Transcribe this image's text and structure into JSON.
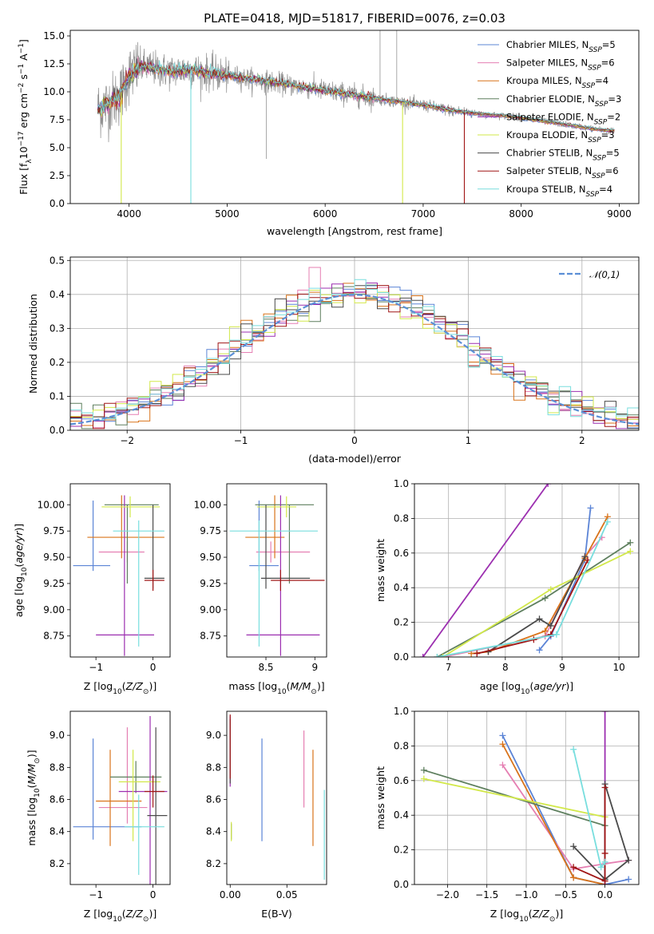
{
  "figure_title": "PLATE=0418, MJD=51817, FIBERID=0076, z=0.03",
  "colors": {
    "Chabrier MILES": "#5b84d6",
    "Salpeter MILES": "#e57fb2",
    "Kroupa MILES": "#d9731a",
    "Chabrier ELODIE": "#5e7f5e",
    "Salpeter ELODIE": "#9c2fb0",
    "Kroupa ELODIE": "#d2e84a",
    "Chabrier STELIB": "#4a4a4a",
    "Salpeter STELIB": "#a01515",
    "Kroupa STELIB": "#78dede",
    "data": "#8c8c8c",
    "normal": "#5b8fd6"
  },
  "chart_data": [
    {
      "id": "spectrum",
      "type": "line",
      "xlabel": "wavelength [Angstrom, rest frame]",
      "ylabel": "Flux [f_λ 10^-17 erg cm^-2 s^-1 A^-1]",
      "xlim": [
        3400,
        9200
      ],
      "ylim": [
        0,
        15.5
      ],
      "xticks": [
        4000,
        5000,
        6000,
        7000,
        8000,
        9000
      ],
      "yticks": [
        0.0,
        2.5,
        5.0,
        7.5,
        10.0,
        12.5,
        15.0
      ],
      "legend_position": "top-right",
      "legend": [
        {
          "label": "Chabrier MILES",
          "nssp": "5"
        },
        {
          "label": "Salpeter MILES",
          "nssp": "6"
        },
        {
          "label": "Kroupa MILES",
          "nssp": "4"
        },
        {
          "label": "Chabrier ELODIE",
          "nssp": "3"
        },
        {
          "label": "Salpeter ELODIE",
          "nssp": "2"
        },
        {
          "label": "Kroupa ELODIE",
          "nssp": "3"
        },
        {
          "label": "Chabrier STELIB",
          "nssp": "5"
        },
        {
          "label": "Salpeter STELIB",
          "nssp": "6"
        },
        {
          "label": "Kroupa STELIB",
          "nssp": "4"
        }
      ],
      "continuum": {
        "wavelength": [
          3680,
          3720,
          3800,
          3900,
          3950,
          4000,
          4100,
          4200,
          4400,
          4600,
          4800,
          5000,
          5200,
          5500,
          5800,
          6000,
          6300,
          6600,
          7000,
          7300,
          7600,
          7900,
          8200,
          8500,
          8800,
          8950
        ],
        "flux": [
          8.5,
          8.6,
          9.0,
          9.6,
          10.5,
          11.5,
          12.2,
          12.2,
          11.8,
          12.0,
          11.7,
          11.5,
          11.2,
          10.8,
          10.4,
          10.1,
          9.7,
          9.3,
          8.8,
          8.3,
          8.0,
          7.8,
          7.4,
          7.0,
          6.6,
          6.5
        ]
      },
      "dips": [
        {
          "wavelength": 3920,
          "flux": 0.0,
          "series": "Kroupa ELODIE"
        },
        {
          "wavelength": 4630,
          "flux": 0.0,
          "series": "Kroupa STELIB"
        },
        {
          "wavelength": 6790,
          "flux": 0.0,
          "series": "Kroupa ELODIE"
        },
        {
          "wavelength": 7420,
          "flux": 0.0,
          "series": "Salpeter STELIB"
        }
      ],
      "data_spikes": [
        {
          "wavelength": 5400,
          "flux": 4.0
        },
        {
          "wavelength": 6560,
          "flux": 15.5
        },
        {
          "wavelength": 6730,
          "flux": 15.5
        }
      ]
    },
    {
      "id": "residuals",
      "type": "histogram",
      "xlabel": "(data-model)/error",
      "ylabel": "Normed distribution",
      "xlim": [
        -2.5,
        2.5
      ],
      "ylim": [
        0,
        0.51
      ],
      "xticks": [
        -2,
        -1,
        0,
        1,
        2
      ],
      "yticks": [
        0.0,
        0.1,
        0.2,
        0.3,
        0.4,
        0.5
      ],
      "grid": true,
      "bin_width": 0.1,
      "reference": {
        "label": "𝒩(0,1)",
        "mean": 0,
        "sigma": 1
      },
      "legend_position": "top-right"
    },
    {
      "id": "age-vs-Z",
      "type": "errorbar",
      "xlabel": "Z [log10(Z/Z⊙)]",
      "ylabel": "age [log10(age/yr)]",
      "xlim": [
        -1.45,
        0.3
      ],
      "ylim": [
        8.55,
        10.2
      ],
      "xticks": [
        -1,
        0
      ],
      "yticks": [
        8.75,
        9.0,
        9.25,
        9.5,
        9.75,
        10.0
      ],
      "points": [
        {
          "series": "Chabrier MILES",
          "x": -1.05,
          "y": 9.42,
          "xerr": [
            0.35,
            0.3
          ],
          "yerr": [
            0.05,
            0.62
          ]
        },
        {
          "series": "Salpeter MILES",
          "x": -0.45,
          "y": 9.55,
          "xerr": [
            0.5,
            0.3
          ],
          "yerr": [
            0.1,
            0.1
          ]
        },
        {
          "series": "Kroupa MILES",
          "x": -0.55,
          "y": 9.69,
          "xerr": [
            0.6,
            0.75
          ],
          "yerr": [
            0.2,
            0.4
          ]
        },
        {
          "series": "Chabrier ELODIE",
          "x": -0.45,
          "y": 10.0,
          "xerr": [
            0.4,
            0.55
          ],
          "yerr": [
            0.75,
            0.0
          ]
        },
        {
          "series": "Salpeter ELODIE",
          "x": -0.5,
          "y": 8.76,
          "xerr": [
            0.5,
            0.52
          ],
          "yerr": [
            0.2,
            1.33
          ]
        },
        {
          "series": "Kroupa ELODIE",
          "x": -0.4,
          "y": 9.98,
          "xerr": [
            0.5,
            0.52
          ],
          "yerr": [
            0.1,
            0.1
          ]
        },
        {
          "series": "Chabrier STELIB",
          "x": 0.0,
          "y": 9.3,
          "xerr": [
            0.15,
            0.2
          ],
          "yerr": [
            0.1,
            0.7
          ]
        },
        {
          "series": "Salpeter STELIB",
          "x": 0.0,
          "y": 9.28,
          "xerr": [
            0.15,
            0.2
          ],
          "yerr": [
            0.1,
            0.1
          ]
        },
        {
          "series": "Kroupa STELIB",
          "x": -0.25,
          "y": 9.75,
          "xerr": [
            0.45,
            0.45
          ],
          "yerr": [
            1.1,
            0.1
          ]
        }
      ]
    },
    {
      "id": "age-vs-mass",
      "type": "errorbar",
      "xlabel": "mass [log10(M/M⊙)]",
      "xlim": [
        8.1,
        9.12
      ],
      "ylim": [
        8.55,
        10.2
      ],
      "xticks": [
        8.5,
        9.0
      ],
      "yticks": [
        8.75,
        9.0,
        9.25,
        9.5,
        9.75,
        10.0
      ],
      "points": [
        {
          "series": "Chabrier MILES",
          "x": 8.43,
          "y": 9.42,
          "xerr": [
            0.1,
            0.2
          ],
          "yerr": [
            0.05,
            0.62
          ]
        },
        {
          "series": "Salpeter MILES",
          "x": 8.55,
          "y": 9.55,
          "xerr": [
            0.15,
            0.4
          ],
          "yerr": [
            0.1,
            0.1
          ]
        },
        {
          "series": "Kroupa MILES",
          "x": 8.59,
          "y": 9.69,
          "xerr": [
            0.3,
            0.1
          ],
          "yerr": [
            0.2,
            0.4
          ]
        },
        {
          "series": "Chabrier ELODIE",
          "x": 8.74,
          "y": 10.0,
          "xerr": [
            0.35,
            0.25
          ],
          "yerr": [
            0.75,
            0.0
          ]
        },
        {
          "series": "Salpeter ELODIE",
          "x": 8.65,
          "y": 8.76,
          "xerr": [
            0.35,
            0.4
          ],
          "yerr": [
            0.2,
            1.33
          ]
        },
        {
          "series": "Kroupa ELODIE",
          "x": 8.71,
          "y": 9.98,
          "xerr": [
            0.3,
            0.1
          ],
          "yerr": [
            0.1,
            0.1
          ]
        },
        {
          "series": "Chabrier STELIB",
          "x": 8.5,
          "y": 9.3,
          "xerr": [
            0.05,
            0.45
          ],
          "yerr": [
            0.1,
            0.7
          ]
        },
        {
          "series": "Salpeter STELIB",
          "x": 8.65,
          "y": 9.28,
          "xerr": [
            0.1,
            0.45
          ],
          "yerr": [
            0.1,
            0.1
          ]
        },
        {
          "series": "Kroupa STELIB",
          "x": 8.43,
          "y": 9.75,
          "xerr": [
            0.3,
            0.6
          ],
          "yerr": [
            1.1,
            0.1
          ]
        }
      ]
    },
    {
      "id": "weight-vs-age",
      "type": "line",
      "xlabel": "age [log10(age/yr)]",
      "ylabel": "mass weight",
      "xlim": [
        6.4,
        10.35
      ],
      "ylim": [
        0,
        1.0
      ],
      "xticks": [
        7,
        8,
        9,
        10
      ],
      "yticks": [
        0.0,
        0.2,
        0.4,
        0.6,
        0.8,
        1.0
      ],
      "grid": true,
      "series": [
        {
          "name": "Chabrier MILES",
          "x": [
            8.6,
            8.8,
            9.4,
            9.5
          ],
          "y": [
            0.04,
            0.12,
            0.56,
            0.86
          ]
        },
        {
          "name": "Salpeter MILES",
          "x": [
            6.9,
            8.7,
            9.4,
            9.7
          ],
          "y": [
            0.0,
            0.12,
            0.58,
            0.69
          ]
        },
        {
          "name": "Kroupa MILES",
          "x": [
            7.4,
            7.7,
            8.7,
            9.4,
            9.8
          ],
          "y": [
            0.02,
            0.03,
            0.15,
            0.57,
            0.81
          ]
        },
        {
          "name": "Chabrier ELODIE",
          "x": [
            6.8,
            8.7,
            10.2
          ],
          "y": [
            0.0,
            0.34,
            0.66
          ]
        },
        {
          "name": "Salpeter ELODIE",
          "x": [
            6.55,
            8.75
          ],
          "y": [
            0.0,
            1.0
          ]
        },
        {
          "name": "Kroupa ELODIE",
          "x": [
            6.9,
            8.8,
            10.2
          ],
          "y": [
            0.0,
            0.39,
            0.61
          ]
        },
        {
          "name": "Chabrier STELIB",
          "x": [
            7.7,
            8.6,
            8.8,
            9.4
          ],
          "y": [
            0.03,
            0.22,
            0.18,
            0.58
          ]
        },
        {
          "name": "Salpeter STELIB",
          "x": [
            7.5,
            8.5,
            8.8,
            9.45
          ],
          "y": [
            0.02,
            0.1,
            0.13,
            0.56
          ]
        },
        {
          "name": "Kroupa STELIB",
          "x": [
            6.8,
            8.9,
            9.8
          ],
          "y": [
            0.0,
            0.13,
            0.78
          ]
        }
      ]
    },
    {
      "id": "mass-vs-Z",
      "type": "errorbar",
      "xlabel": "Z [log10(Z/Z⊙)]",
      "ylabel": "mass [log10(M/M⊙)]",
      "xlim": [
        -1.45,
        0.3
      ],
      "ylim": [
        8.07,
        9.15
      ],
      "xticks": [
        -1,
        0
      ],
      "yticks": [
        8.2,
        8.4,
        8.6,
        8.8,
        9.0
      ],
      "points": [
        {
          "series": "Chabrier MILES",
          "x": -1.05,
          "y": 8.43,
          "xerr": [
            0.35,
            0.85
          ],
          "yerr": [
            0.08,
            0.55
          ]
        },
        {
          "series": "Salpeter MILES",
          "x": -0.45,
          "y": 8.55,
          "xerr": [
            0.5,
            0.35
          ],
          "yerr": [
            0.1,
            0.5
          ]
        },
        {
          "series": "Kroupa MILES",
          "x": -0.75,
          "y": 8.59,
          "xerr": [
            0.25,
            0.55
          ],
          "yerr": [
            0.28,
            0.32
          ]
        },
        {
          "series": "Chabrier ELODIE",
          "x": -0.3,
          "y": 8.74,
          "xerr": [
            0.45,
            0.45
          ],
          "yerr": [
            0.1,
            0.1
          ]
        },
        {
          "series": "Salpeter ELODIE",
          "x": -0.05,
          "y": 8.65,
          "xerr": [
            0.55,
            0.3
          ],
          "yerr": [
            0.58,
            0.47
          ]
        },
        {
          "series": "Kroupa ELODIE",
          "x": -0.35,
          "y": 8.71,
          "xerr": [
            0.25,
            0.48
          ],
          "yerr": [
            0.37,
            0.2
          ]
        },
        {
          "series": "Chabrier STELIB",
          "x": 0.05,
          "y": 8.5,
          "xerr": [
            0.15,
            0.2
          ],
          "yerr": [
            0.5,
            0.55
          ]
        },
        {
          "series": "Salpeter STELIB",
          "x": 0.0,
          "y": 8.65,
          "xerr": [
            0.15,
            0.2
          ],
          "yerr": [
            0.1,
            0.1
          ]
        },
        {
          "series": "Kroupa STELIB",
          "x": -0.25,
          "y": 8.43,
          "xerr": [
            0.25,
            0.45
          ],
          "yerr": [
            0.3,
            0.2
          ]
        }
      ]
    },
    {
      "id": "mass-vs-ebv",
      "type": "errorbar",
      "xlabel": "E(B-V)",
      "xlim": [
        -0.003,
        0.085
      ],
      "ylim": [
        8.07,
        9.15
      ],
      "xticks": [
        0.0,
        0.05
      ],
      "yticks": [
        8.2,
        8.4,
        8.6,
        8.8,
        9.0
      ],
      "points": [
        {
          "series": "Chabrier MILES",
          "x": 0.028,
          "y": 8.66,
          "yerr": [
            0.32,
            0.32
          ]
        },
        {
          "series": "Salpeter MILES",
          "x": 0.065,
          "y": 8.79,
          "yerr": [
            0.24,
            0.24
          ]
        },
        {
          "series": "Kroupa MILES",
          "x": 0.073,
          "y": 8.61,
          "yerr": [
            0.3,
            0.3
          ]
        },
        {
          "series": "Chabrier ELODIE",
          "x": 0.001,
          "y": 8.4,
          "yerr": [
            0.05,
            0.05
          ]
        },
        {
          "series": "Salpeter ELODIE",
          "x": 0.0,
          "y": 8.9,
          "yerr": [
            0.22,
            0.22
          ]
        },
        {
          "series": "Kroupa ELODIE",
          "x": 0.001,
          "y": 8.4,
          "yerr": [
            0.06,
            0.06
          ]
        },
        {
          "series": "Chabrier STELIB",
          "x": 0.0,
          "y": 8.9,
          "yerr": [
            0.2,
            0.2
          ]
        },
        {
          "series": "Salpeter STELIB",
          "x": 0.0,
          "y": 8.93,
          "yerr": [
            0.2,
            0.2
          ]
        },
        {
          "series": "Kroupa STELIB",
          "x": 0.083,
          "y": 8.38,
          "yerr": [
            0.28,
            0.28
          ]
        }
      ]
    },
    {
      "id": "weight-vs-Z",
      "type": "line",
      "xlabel": "Z [log10(Z/Z⊙)]",
      "ylabel": "mass weight",
      "xlim": [
        -2.42,
        0.43
      ],
      "ylim": [
        0,
        1.0
      ],
      "xticks": [
        -2.0,
        -1.5,
        -1.0,
        -0.5,
        0.0
      ],
      "yticks": [
        0.0,
        0.2,
        0.4,
        0.6,
        0.8,
        1.0
      ],
      "grid": true,
      "series": [
        {
          "name": "Chabrier MILES",
          "x": [
            -1.3,
            -0.4,
            0.0,
            0.3
          ],
          "y": [
            0.86,
            0.04,
            0.0,
            0.03
          ]
        },
        {
          "name": "Salpeter MILES",
          "x": [
            -1.3,
            -0.4,
            0.0,
            0.3
          ],
          "y": [
            0.69,
            0.09,
            0.12,
            0.14
          ]
        },
        {
          "name": "Kroupa MILES",
          "x": [
            -1.3,
            -0.4,
            0.0
          ],
          "y": [
            0.81,
            0.04,
            0.0
          ]
        },
        {
          "name": "Chabrier ELODIE",
          "x": [
            -2.3,
            0.0
          ],
          "y": [
            0.66,
            0.34
          ]
        },
        {
          "name": "Salpeter ELODIE",
          "x": [
            0.0,
            0.0
          ],
          "y": [
            0.0,
            1.0
          ]
        },
        {
          "name": "Kroupa ELODIE",
          "x": [
            -2.3,
            0.0
          ],
          "y": [
            0.61,
            0.39
          ]
        },
        {
          "name": "Chabrier STELIB",
          "x": [
            -0.4,
            0.0,
            0.0,
            0.3,
            0.0
          ],
          "y": [
            0.22,
            0.03,
            0.58,
            0.14,
            0.03
          ]
        },
        {
          "name": "Salpeter STELIB",
          "x": [
            -0.4,
            0.0,
            0.0,
            0.0
          ],
          "y": [
            0.1,
            0.02,
            0.56,
            0.18
          ]
        },
        {
          "name": "Kroupa STELIB",
          "x": [
            -0.4,
            -0.05,
            0.0
          ],
          "y": [
            0.78,
            0.1,
            0.13
          ]
        }
      ]
    }
  ]
}
